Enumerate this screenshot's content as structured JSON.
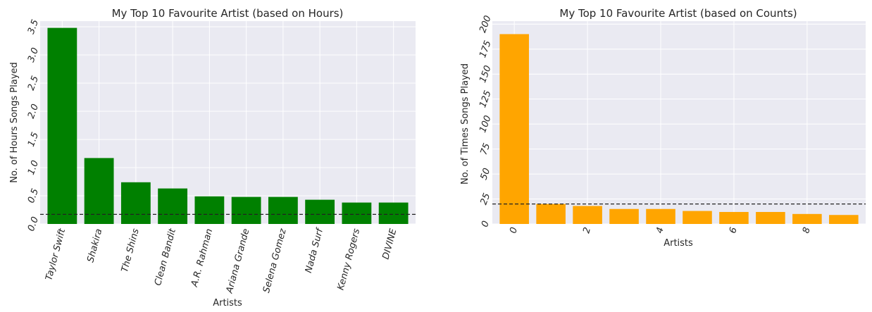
{
  "chart_data": [
    {
      "type": "bar",
      "title": "My Top 10 Favourite Artist (based on Hours)",
      "xlabel": "Artists",
      "ylabel": "No. of Hours Songs Played",
      "categories": [
        "Taylor Swift",
        "Shakira",
        "The Shins",
        "Clean Bandit",
        "A.R. Rahman",
        "Ariana Grande",
        "Selena Gomez",
        "Nada Surf",
        "Kenny Rogers",
        "DIVINE"
      ],
      "values": [
        3.48,
        1.17,
        0.74,
        0.63,
        0.49,
        0.48,
        0.48,
        0.43,
        0.38,
        0.38
      ],
      "ylim": [
        0,
        3.6
      ],
      "yticks": [
        "0.0",
        "0.5",
        "1.0",
        "1.5",
        "2.0",
        "2.5",
        "3.0",
        "3.5"
      ],
      "reference_line": 0.17,
      "bar_color": "#008000",
      "grid": true
    },
    {
      "type": "bar",
      "title": "My Top 10 Favourite Artist (based on Counts)",
      "xlabel": "Artists",
      "ylabel": "No. of Times Songs Played",
      "x": [
        0,
        1,
        2,
        3,
        4,
        5,
        6,
        7,
        8,
        9
      ],
      "values": [
        190,
        20,
        18,
        15,
        15,
        13,
        12,
        12,
        10,
        9
      ],
      "ylim": [
        0,
        203
      ],
      "yticks": [
        "0",
        "25",
        "50",
        "75",
        "100",
        "125",
        "150",
        "175",
        "200"
      ],
      "xticks": [
        "0",
        "2",
        "4",
        "6",
        "8"
      ],
      "reference_line": 20,
      "bar_color": "#FFA500",
      "grid": true
    }
  ]
}
